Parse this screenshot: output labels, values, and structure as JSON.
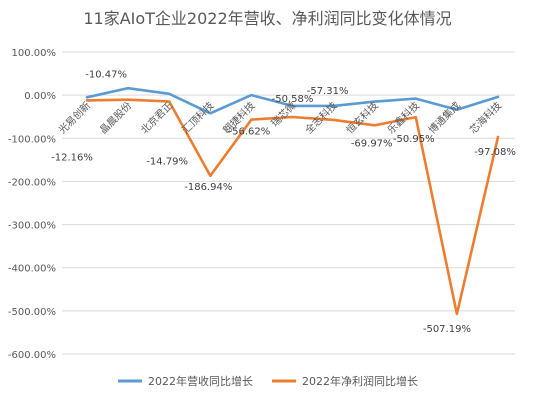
{
  "chart_data": {
    "type": "line",
    "title": "11家AIoT企业2022年营收、净利润同比变化体情况",
    "categories": [
      "光易创新",
      "晶晨股份",
      "北京君正",
      "汇顶科技",
      "翱捷科技",
      "瑞芯微",
      "全志科技",
      "恒玄科技",
      "乐鑫科技",
      "博通集成",
      "芯海科技"
    ],
    "y_ticks": [
      "100.00%",
      "0.00%",
      "-100.00%",
      "-200.00%",
      "-300.00%",
      "-400.00%",
      "-500.00%",
      "-600.00%"
    ],
    "ylim": [
      -600,
      100
    ],
    "grid": true,
    "legend_position": "bottom",
    "series": [
      {
        "name": "2022年营收同比增长",
        "color": "#5b9bd5",
        "values": [
          -5,
          16,
          3,
          -42,
          0,
          -25,
          -25,
          -15,
          -8,
          -34,
          -4
        ]
      },
      {
        "name": "2022年净利润同比增长",
        "color": "#ed7d31",
        "values": [
          -12.16,
          -10.47,
          -14.79,
          -186.94,
          -56.62,
          -50.58,
          -57.31,
          -69.97,
          -50.95,
          -507.19,
          -97.08
        ],
        "labels": [
          "-12.16%",
          "-10.47%",
          "-14.79%",
          "-186.94%",
          "-56.62%",
          "-50.58%",
          "-57.31%",
          "-69.97%",
          "-50.95%",
          "-507.19%",
          "-97.08%"
        ]
      }
    ]
  }
}
